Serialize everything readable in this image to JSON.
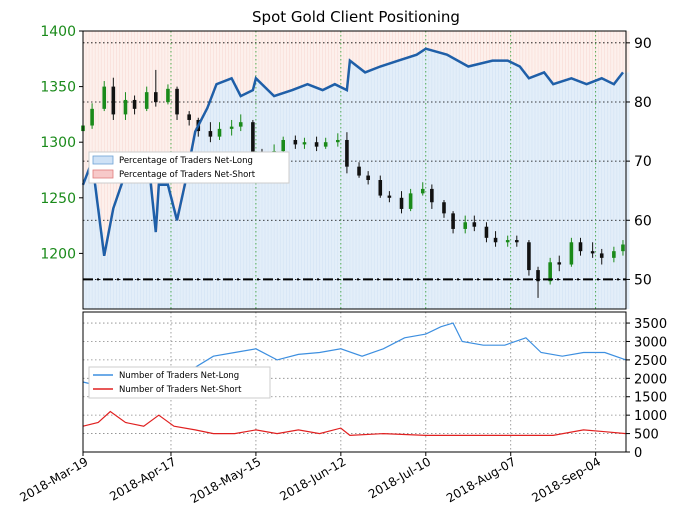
{
  "title": "Spot Gold Client Positioning",
  "chart_data": [
    {
      "type": "candlestick",
      "panel": "price-and-percentage",
      "y_left_ticks": [
        "1200",
        "1250",
        "1300",
        "1350",
        "1400"
      ],
      "y_left_range": [
        1150,
        1400
      ],
      "y_right_ticks": [
        "50",
        "60",
        "70",
        "80",
        "90"
      ],
      "y_right_range": [
        45,
        92
      ],
      "threshold_line": 50,
      "legend": [
        "Percentage of Traders Net-Long",
        "Percentage of Traders Net-Short"
      ],
      "legend_position": "left",
      "net_long_pct": [
        {
          "x": "2018-03-19",
          "y": 66
        },
        {
          "x": "2018-03-22",
          "y": 70
        },
        {
          "x": "2018-03-26",
          "y": 54
        },
        {
          "x": "2018-03-29",
          "y": 62
        },
        {
          "x": "2018-04-02",
          "y": 68
        },
        {
          "x": "2018-04-06",
          "y": 67
        },
        {
          "x": "2018-04-10",
          "y": 68
        },
        {
          "x": "2018-04-12",
          "y": 58
        },
        {
          "x": "2018-04-13",
          "y": 66
        },
        {
          "x": "2018-04-16",
          "y": 66
        },
        {
          "x": "2018-04-19",
          "y": 60
        },
        {
          "x": "2018-04-22",
          "y": 67
        },
        {
          "x": "2018-04-25",
          "y": 75
        },
        {
          "x": "2018-04-29",
          "y": 79
        },
        {
          "x": "2018-05-02",
          "y": 83
        },
        {
          "x": "2018-05-07",
          "y": 84
        },
        {
          "x": "2018-05-10",
          "y": 81
        },
        {
          "x": "2018-05-14",
          "y": 82
        },
        {
          "x": "2018-05-15",
          "y": 84
        },
        {
          "x": "2018-05-21",
          "y": 81
        },
        {
          "x": "2018-05-27",
          "y": 82
        },
        {
          "x": "2018-06-01",
          "y": 83
        },
        {
          "x": "2018-06-06",
          "y": 82
        },
        {
          "x": "2018-06-10",
          "y": 83
        },
        {
          "x": "2018-06-14",
          "y": 82
        },
        {
          "x": "2018-06-15",
          "y": 87
        },
        {
          "x": "2018-06-20",
          "y": 85
        },
        {
          "x": "2018-06-25",
          "y": 86
        },
        {
          "x": "2018-07-01",
          "y": 87
        },
        {
          "x": "2018-07-07",
          "y": 88
        },
        {
          "x": "2018-07-10",
          "y": 89
        },
        {
          "x": "2018-07-17",
          "y": 88
        },
        {
          "x": "2018-07-24",
          "y": 86
        },
        {
          "x": "2018-08-01",
          "y": 87
        },
        {
          "x": "2018-08-06",
          "y": 87
        },
        {
          "x": "2018-08-10",
          "y": 86
        },
        {
          "x": "2018-08-13",
          "y": 84
        },
        {
          "x": "2018-08-18",
          "y": 85
        },
        {
          "x": "2018-08-21",
          "y": 83
        },
        {
          "x": "2018-08-27",
          "y": 84
        },
        {
          "x": "2018-09-01",
          "y": 83
        },
        {
          "x": "2018-09-06",
          "y": 84
        },
        {
          "x": "2018-09-10",
          "y": 83
        },
        {
          "x": "2018-09-13",
          "y": 85
        }
      ],
      "candles": [
        {
          "x": "2018-03-19",
          "o": 1310,
          "h": 1320,
          "l": 1305,
          "c": 1315
        },
        {
          "x": "2018-03-22",
          "o": 1315,
          "h": 1335,
          "l": 1312,
          "c": 1330
        },
        {
          "x": "2018-03-26",
          "o": 1330,
          "h": 1355,
          "l": 1328,
          "c": 1350
        },
        {
          "x": "2018-03-29",
          "o": 1350,
          "h": 1358,
          "l": 1320,
          "c": 1325
        },
        {
          "x": "2018-04-02",
          "o": 1325,
          "h": 1345,
          "l": 1320,
          "c": 1338
        },
        {
          "x": "2018-04-05",
          "o": 1338,
          "h": 1342,
          "l": 1325,
          "c": 1330
        },
        {
          "x": "2018-04-09",
          "o": 1330,
          "h": 1350,
          "l": 1328,
          "c": 1345
        },
        {
          "x": "2018-04-12",
          "o": 1345,
          "h": 1365,
          "l": 1332,
          "c": 1336
        },
        {
          "x": "2018-04-16",
          "o": 1336,
          "h": 1352,
          "l": 1334,
          "c": 1348
        },
        {
          "x": "2018-04-19",
          "o": 1348,
          "h": 1350,
          "l": 1320,
          "c": 1325
        },
        {
          "x": "2018-04-23",
          "o": 1325,
          "h": 1328,
          "l": 1315,
          "c": 1320
        },
        {
          "x": "2018-04-26",
          "o": 1320,
          "h": 1322,
          "l": 1305,
          "c": 1310
        },
        {
          "x": "2018-04-30",
          "o": 1310,
          "h": 1318,
          "l": 1300,
          "c": 1305
        },
        {
          "x": "2018-05-03",
          "o": 1305,
          "h": 1318,
          "l": 1302,
          "c": 1312
        },
        {
          "x": "2018-05-07",
          "o": 1312,
          "h": 1320,
          "l": 1306,
          "c": 1314
        },
        {
          "x": "2018-05-10",
          "o": 1314,
          "h": 1325,
          "l": 1310,
          "c": 1318
        },
        {
          "x": "2018-05-14",
          "o": 1318,
          "h": 1320,
          "l": 1288,
          "c": 1290
        },
        {
          "x": "2018-05-17",
          "o": 1290,
          "h": 1294,
          "l": 1284,
          "c": 1288
        },
        {
          "x": "2018-05-21",
          "o": 1288,
          "h": 1298,
          "l": 1285,
          "c": 1292
        },
        {
          "x": "2018-05-24",
          "o": 1292,
          "h": 1305,
          "l": 1290,
          "c": 1302
        },
        {
          "x": "2018-05-28",
          "o": 1302,
          "h": 1306,
          "l": 1294,
          "c": 1298
        },
        {
          "x": "2018-05-31",
          "o": 1298,
          "h": 1304,
          "l": 1294,
          "c": 1300
        },
        {
          "x": "2018-06-04",
          "o": 1300,
          "h": 1305,
          "l": 1292,
          "c": 1296
        },
        {
          "x": "2018-06-07",
          "o": 1296,
          "h": 1304,
          "l": 1294,
          "c": 1300
        },
        {
          "x": "2018-06-11",
          "o": 1300,
          "h": 1308,
          "l": 1296,
          "c": 1302
        },
        {
          "x": "2018-06-14",
          "o": 1302,
          "h": 1309,
          "l": 1272,
          "c": 1278
        },
        {
          "x": "2018-06-18",
          "o": 1278,
          "h": 1282,
          "l": 1268,
          "c": 1270
        },
        {
          "x": "2018-06-21",
          "o": 1270,
          "h": 1274,
          "l": 1262,
          "c": 1266
        },
        {
          "x": "2018-06-25",
          "o": 1266,
          "h": 1270,
          "l": 1250,
          "c": 1252
        },
        {
          "x": "2018-06-28",
          "o": 1252,
          "h": 1256,
          "l": 1246,
          "c": 1250
        },
        {
          "x": "2018-07-02",
          "o": 1250,
          "h": 1256,
          "l": 1236,
          "c": 1240
        },
        {
          "x": "2018-07-05",
          "o": 1240,
          "h": 1258,
          "l": 1238,
          "c": 1254
        },
        {
          "x": "2018-07-09",
          "o": 1254,
          "h": 1264,
          "l": 1252,
          "c": 1258
        },
        {
          "x": "2018-07-12",
          "o": 1258,
          "h": 1262,
          "l": 1240,
          "c": 1246
        },
        {
          "x": "2018-07-16",
          "o": 1246,
          "h": 1248,
          "l": 1232,
          "c": 1236
        },
        {
          "x": "2018-07-19",
          "o": 1236,
          "h": 1238,
          "l": 1218,
          "c": 1222
        },
        {
          "x": "2018-07-23",
          "o": 1222,
          "h": 1234,
          "l": 1218,
          "c": 1228
        },
        {
          "x": "2018-07-26",
          "o": 1228,
          "h": 1234,
          "l": 1220,
          "c": 1224
        },
        {
          "x": "2018-07-30",
          "o": 1224,
          "h": 1228,
          "l": 1210,
          "c": 1214
        },
        {
          "x": "2018-08-02",
          "o": 1214,
          "h": 1220,
          "l": 1206,
          "c": 1210
        },
        {
          "x": "2018-08-06",
          "o": 1210,
          "h": 1216,
          "l": 1206,
          "c": 1212
        },
        {
          "x": "2018-08-09",
          "o": 1212,
          "h": 1216,
          "l": 1206,
          "c": 1210
        },
        {
          "x": "2018-08-13",
          "o": 1210,
          "h": 1212,
          "l": 1180,
          "c": 1185
        },
        {
          "x": "2018-08-16",
          "o": 1185,
          "h": 1188,
          "l": 1160,
          "c": 1175
        },
        {
          "x": "2018-08-20",
          "o": 1175,
          "h": 1196,
          "l": 1172,
          "c": 1192
        },
        {
          "x": "2018-08-23",
          "o": 1192,
          "h": 1198,
          "l": 1184,
          "c": 1190
        },
        {
          "x": "2018-08-27",
          "o": 1190,
          "h": 1214,
          "l": 1188,
          "c": 1210
        },
        {
          "x": "2018-08-30",
          "o": 1210,
          "h": 1214,
          "l": 1198,
          "c": 1202
        },
        {
          "x": "2018-09-03",
          "o": 1202,
          "h": 1210,
          "l": 1196,
          "c": 1200
        },
        {
          "x": "2018-09-06",
          "o": 1200,
          "h": 1204,
          "l": 1190,
          "c": 1196
        },
        {
          "x": "2018-09-10",
          "o": 1196,
          "h": 1206,
          "l": 1192,
          "c": 1202
        },
        {
          "x": "2018-09-13",
          "o": 1202,
          "h": 1212,
          "l": 1198,
          "c": 1208
        }
      ]
    },
    {
      "type": "line",
      "panel": "trader-counts",
      "y_right_ticks": [
        "0",
        "500",
        "1000",
        "1500",
        "2000",
        "2500",
        "3000",
        "3500"
      ],
      "y_range": [
        0,
        3800
      ],
      "x_tick_labels": [
        "2018-Mar-19",
        "2018-Apr-17",
        "2018-May-15",
        "2018-Jun-12",
        "2018-Jul-10",
        "2018-Aug-07",
        "2018-Sep-04"
      ],
      "x_range": [
        "2018-03-19",
        "2018-09-14"
      ],
      "legend_position": "left",
      "series": [
        {
          "name": "Number of Traders Net-Long",
          "color": "#3d8fe0",
          "points": [
            {
              "x": "2018-03-19",
              "y": 1900
            },
            {
              "x": "2018-04-08",
              "y": 1500
            },
            {
              "x": "2018-04-25",
              "y": 2300
            },
            {
              "x": "2018-05-01",
              "y": 2600
            },
            {
              "x": "2018-05-08",
              "y": 2700
            },
            {
              "x": "2018-05-15",
              "y": 2800
            },
            {
              "x": "2018-05-22",
              "y": 2500
            },
            {
              "x": "2018-05-29",
              "y": 2650
            },
            {
              "x": "2018-06-05",
              "y": 2700
            },
            {
              "x": "2018-06-12",
              "y": 2800
            },
            {
              "x": "2018-06-19",
              "y": 2600
            },
            {
              "x": "2018-06-26",
              "y": 2800
            },
            {
              "x": "2018-07-03",
              "y": 3100
            },
            {
              "x": "2018-07-10",
              "y": 3200
            },
            {
              "x": "2018-07-15",
              "y": 3400
            },
            {
              "x": "2018-07-19",
              "y": 3500
            },
            {
              "x": "2018-07-22",
              "y": 3000
            },
            {
              "x": "2018-07-29",
              "y": 2900
            },
            {
              "x": "2018-08-05",
              "y": 2900
            },
            {
              "x": "2018-08-12",
              "y": 3100
            },
            {
              "x": "2018-08-17",
              "y": 2700
            },
            {
              "x": "2018-08-24",
              "y": 2600
            },
            {
              "x": "2018-08-31",
              "y": 2700
            },
            {
              "x": "2018-09-07",
              "y": 2700
            },
            {
              "x": "2018-09-14",
              "y": 2500
            }
          ]
        },
        {
          "name": "Number of Traders Net-Short",
          "color": "#e02020",
          "points": [
            {
              "x": "2018-03-19",
              "y": 700
            },
            {
              "x": "2018-03-24",
              "y": 800
            },
            {
              "x": "2018-03-28",
              "y": 1100
            },
            {
              "x": "2018-04-02",
              "y": 800
            },
            {
              "x": "2018-04-08",
              "y": 700
            },
            {
              "x": "2018-04-13",
              "y": 1000
            },
            {
              "x": "2018-04-18",
              "y": 700
            },
            {
              "x": "2018-04-25",
              "y": 600
            },
            {
              "x": "2018-05-01",
              "y": 500
            },
            {
              "x": "2018-05-08",
              "y": 500
            },
            {
              "x": "2018-05-15",
              "y": 600
            },
            {
              "x": "2018-05-22",
              "y": 500
            },
            {
              "x": "2018-05-29",
              "y": 600
            },
            {
              "x": "2018-06-05",
              "y": 500
            },
            {
              "x": "2018-06-12",
              "y": 650
            },
            {
              "x": "2018-06-15",
              "y": 450
            },
            {
              "x": "2018-06-26",
              "y": 500
            },
            {
              "x": "2018-07-10",
              "y": 450
            },
            {
              "x": "2018-07-24",
              "y": 450
            },
            {
              "x": "2018-08-07",
              "y": 450
            },
            {
              "x": "2018-08-21",
              "y": 450
            },
            {
              "x": "2018-08-31",
              "y": 600
            },
            {
              "x": "2018-09-07",
              "y": 550
            },
            {
              "x": "2018-09-14",
              "y": 500
            }
          ]
        }
      ]
    }
  ]
}
